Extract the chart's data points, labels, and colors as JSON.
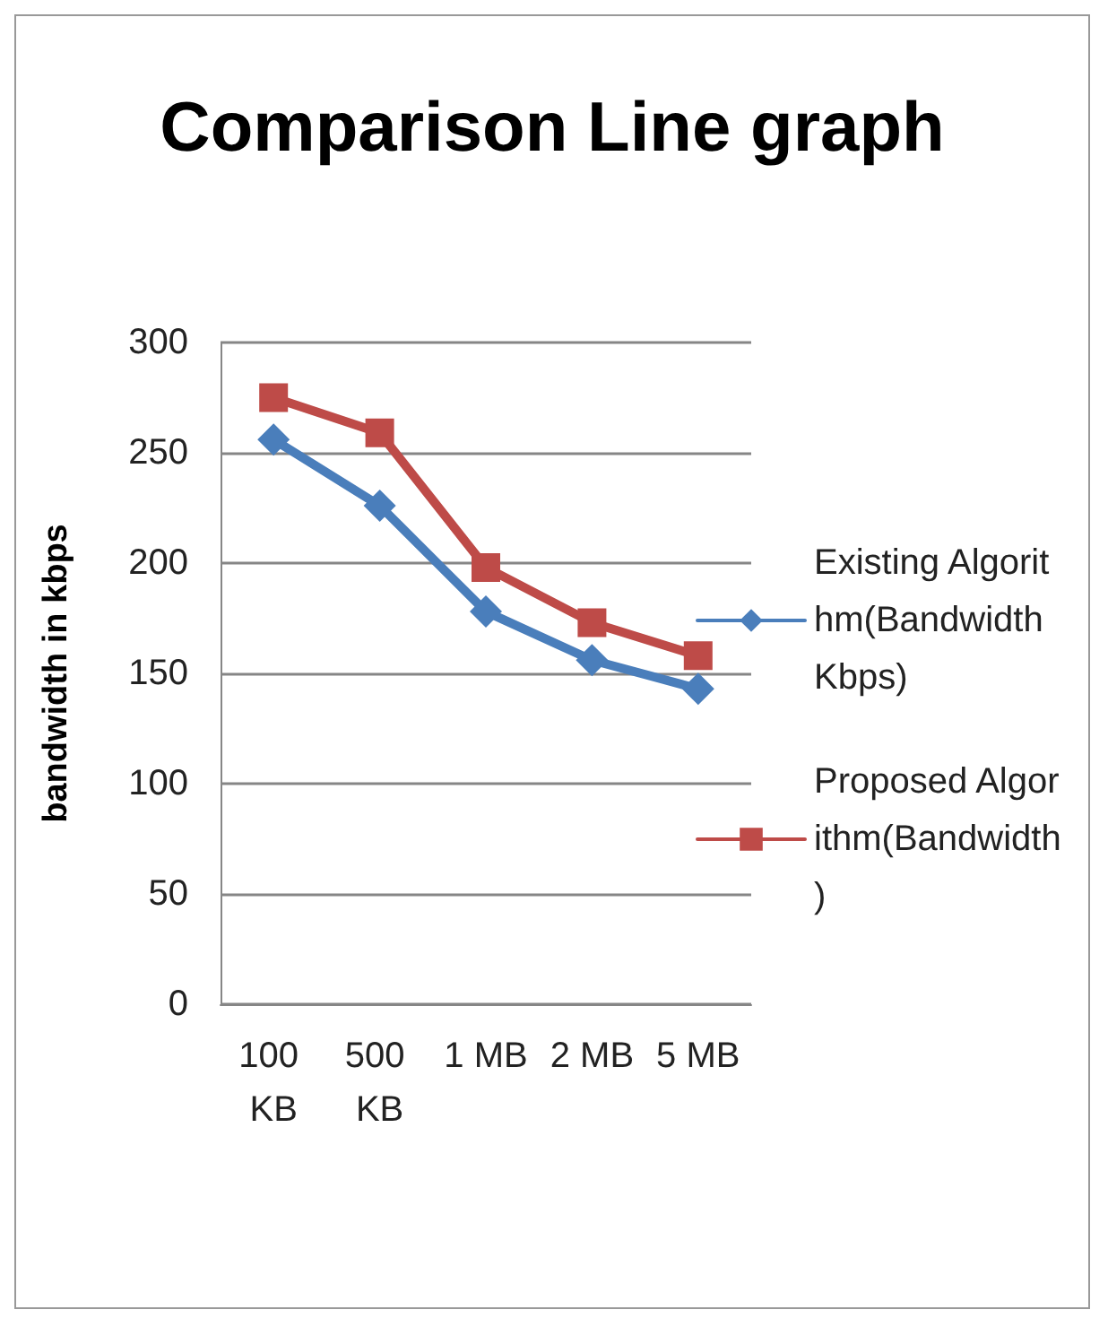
{
  "chart_data": {
    "type": "line",
    "title": "Comparison Line graph",
    "ylabel": "bandwidth in kbps",
    "categories": [
      "100 KB",
      "500 KB",
      "1 MB",
      "2 MB",
      "5 MB"
    ],
    "series": [
      {
        "name": "Existing Algorithm(Bandwidth Kbps)",
        "color": "#4a7ebb",
        "marker": "diamond",
        "values": [
          256,
          226,
          178,
          156,
          143
        ]
      },
      {
        "name": "Proposed Algorithm(Bandwidth)",
        "color": "#be4b48",
        "marker": "square",
        "values": [
          275,
          259,
          198,
          173,
          158
        ]
      }
    ],
    "ylim": [
      0,
      300
    ],
    "yticks": [
      0,
      50,
      100,
      150,
      200,
      250,
      300
    ],
    "grid": "y",
    "legend": "right"
  }
}
